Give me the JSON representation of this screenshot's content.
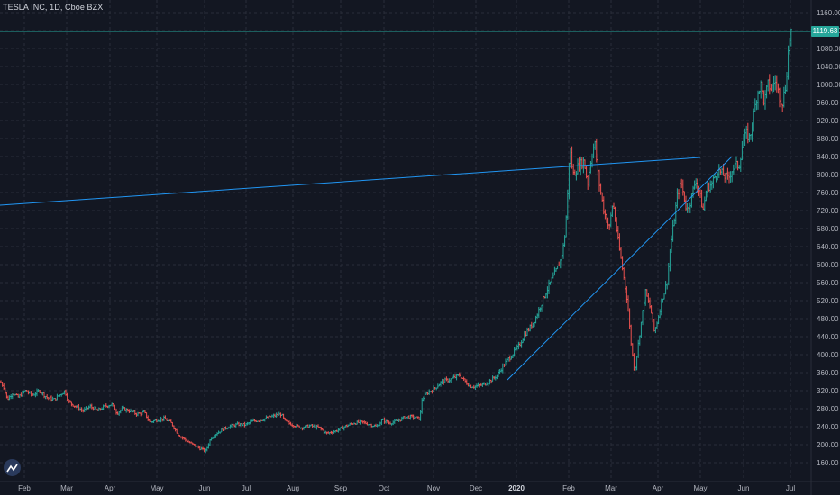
{
  "title": "TESLA INC, 1D, Cboe BZX",
  "current_price_label": "1119.63",
  "colors": {
    "background": "#131722",
    "grid": "#2a2e39",
    "up": "#26a69a",
    "down": "#ef5350",
    "trendline": "#2196f3",
    "axis_text": "#b2b5be"
  },
  "chart_data": {
    "type": "ohlc-bar",
    "title": "TESLA INC, 1D, Cboe BZX",
    "y_ticks": [
      160,
      200,
      240,
      280,
      320,
      360,
      400,
      440,
      480,
      520,
      560,
      600,
      640,
      680,
      720,
      760,
      800,
      840,
      880,
      920,
      960,
      1000,
      1040,
      1080,
      1120,
      1160
    ],
    "y_tick_labels": [
      "160.00",
      "200.00",
      "240.00",
      "280.00",
      "320.00",
      "360.00",
      "400.00",
      "440.00",
      "480.00",
      "520.00",
      "560.00",
      "600.00",
      "640.00",
      "680.00",
      "720.00",
      "760.00",
      "800.00",
      "840.00",
      "880.00",
      "920.00",
      "960.00",
      "1000.00",
      "1040.00",
      "1080.00",
      "1120.00",
      "1160.00"
    ],
    "ylim": [
      125,
      1185
    ],
    "x_ticks": [
      "Feb",
      "Mar",
      "Apr",
      "May",
      "Jun",
      "Jul",
      "Aug",
      "Sep",
      "Oct",
      "Nov",
      "Dec",
      "2020",
      "Feb",
      "Mar",
      "Apr",
      "May",
      "Jun",
      "Jul"
    ],
    "x_tick_bold": [
      false,
      false,
      false,
      false,
      false,
      false,
      false,
      false,
      false,
      false,
      false,
      true,
      false,
      false,
      false,
      false,
      false,
      false
    ],
    "price_path": [
      [
        0,
        340
      ],
      [
        4,
        330
      ],
      [
        8,
        300
      ],
      [
        14,
        315
      ],
      [
        20,
        305
      ],
      [
        28,
        320
      ],
      [
        36,
        310
      ],
      [
        44,
        320
      ],
      [
        52,
        305
      ],
      [
        60,
        300
      ],
      [
        66,
        310
      ],
      [
        72,
        320
      ],
      [
        76,
        295
      ],
      [
        84,
        285
      ],
      [
        92,
        275
      ],
      [
        100,
        285
      ],
      [
        108,
        275
      ],
      [
        116,
        285
      ],
      [
        124,
        290
      ],
      [
        130,
        270
      ],
      [
        136,
        280
      ],
      [
        144,
        275
      ],
      [
        152,
        268
      ],
      [
        160,
        272
      ],
      [
        166,
        250
      ],
      [
        174,
        255
      ],
      [
        182,
        258
      ],
      [
        190,
        248
      ],
      [
        198,
        222
      ],
      [
        206,
        210
      ],
      [
        214,
        200
      ],
      [
        222,
        192
      ],
      [
        228,
        185
      ],
      [
        234,
        215
      ],
      [
        240,
        225
      ],
      [
        248,
        235
      ],
      [
        256,
        242
      ],
      [
        264,
        245
      ],
      [
        272,
        244
      ],
      [
        280,
        252
      ],
      [
        290,
        255
      ],
      [
        300,
        262
      ],
      [
        312,
        268
      ],
      [
        316,
        252
      ],
      [
        324,
        245
      ],
      [
        334,
        238
      ],
      [
        344,
        242
      ],
      [
        354,
        238
      ],
      [
        362,
        225
      ],
      [
        372,
        230
      ],
      [
        382,
        240
      ],
      [
        392,
        248
      ],
      [
        402,
        250
      ],
      [
        410,
        245
      ],
      [
        418,
        240
      ],
      [
        424,
        255
      ],
      [
        432,
        248
      ],
      [
        440,
        252
      ],
      [
        448,
        260
      ],
      [
        456,
        262
      ],
      [
        466,
        258
      ],
      [
        468,
        300
      ],
      [
        474,
        315
      ],
      [
        482,
        325
      ],
      [
        490,
        340
      ],
      [
        500,
        345
      ],
      [
        510,
        355
      ],
      [
        516,
        340
      ],
      [
        522,
        330
      ],
      [
        530,
        330
      ],
      [
        538,
        335
      ],
      [
        546,
        345
      ],
      [
        552,
        355
      ],
      [
        558,
        375
      ],
      [
        564,
        390
      ],
      [
        570,
        405
      ],
      [
        576,
        420
      ],
      [
        582,
        445
      ],
      [
        588,
        460
      ],
      [
        594,
        480
      ],
      [
        600,
        510
      ],
      [
        606,
        540
      ],
      [
        612,
        565
      ],
      [
        618,
        590
      ],
      [
        622,
        610
      ],
      [
        626,
        650
      ],
      [
        628,
        700
      ],
      [
        630,
        760
      ],
      [
        632,
        860
      ],
      [
        636,
        800
      ],
      [
        642,
        820
      ],
      [
        648,
        830
      ],
      [
        652,
        780
      ],
      [
        656,
        840
      ],
      [
        660,
        870
      ],
      [
        664,
        790
      ],
      [
        670,
        720
      ],
      [
        676,
        680
      ],
      [
        680,
        740
      ],
      [
        686,
        650
      ],
      [
        690,
        600
      ],
      [
        696,
        520
      ],
      [
        700,
        430
      ],
      [
        704,
        360
      ],
      [
        708,
        420
      ],
      [
        712,
        480
      ],
      [
        716,
        540
      ],
      [
        722,
        500
      ],
      [
        726,
        450
      ],
      [
        730,
        480
      ],
      [
        734,
        520
      ],
      [
        740,
        560
      ],
      [
        744,
        640
      ],
      [
        748,
        700
      ],
      [
        752,
        760
      ],
      [
        756,
        780
      ],
      [
        762,
        720
      ],
      [
        766,
        740
      ],
      [
        772,
        790
      ],
      [
        776,
        760
      ],
      [
        780,
        720
      ],
      [
        784,
        770
      ],
      [
        790,
        780
      ],
      [
        796,
        810
      ],
      [
        802,
        800
      ],
      [
        808,
        790
      ],
      [
        812,
        810
      ],
      [
        816,
        820
      ],
      [
        820,
        820
      ],
      [
        824,
        870
      ],
      [
        828,
        890
      ],
      [
        832,
        880
      ],
      [
        836,
        930
      ],
      [
        840,
        980
      ],
      [
        844,
        1000
      ],
      [
        848,
        960
      ],
      [
        852,
        1000
      ],
      [
        856,
        990
      ],
      [
        860,
        1010
      ],
      [
        864,
        980
      ],
      [
        868,
        960
      ],
      [
        872,
        1000
      ],
      [
        874,
        1060
      ],
      [
        876,
        1100
      ],
      [
        878,
        1120
      ]
    ]
  }
}
